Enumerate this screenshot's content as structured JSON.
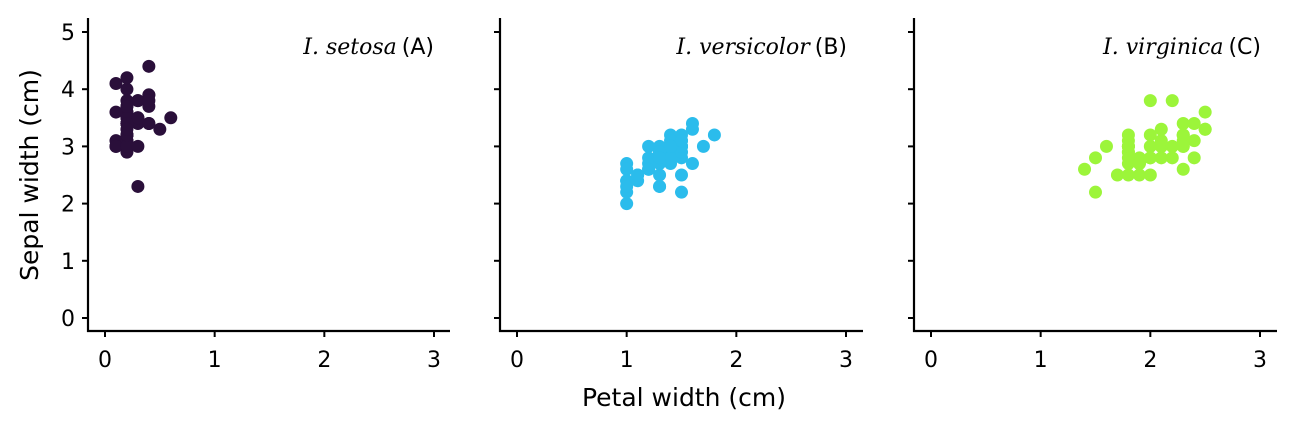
{
  "chart_data": {
    "type": "scatter",
    "xlabel": "Petal width (cm)",
    "ylabel": "Sepal width (cm)",
    "xlim": [
      0,
      3
    ],
    "ylim": [
      0,
      5
    ],
    "xticks": [
      0,
      1,
      2,
      3
    ],
    "yticks": [
      0,
      1,
      2,
      3,
      4,
      5
    ],
    "grid": false,
    "facets": [
      {
        "species": "I. setosa",
        "tag": "(A)",
        "color": "#2a0f3a",
        "points": [
          [
            0.2,
            3.5
          ],
          [
            0.2,
            3.0
          ],
          [
            0.2,
            3.2
          ],
          [
            0.2,
            3.1
          ],
          [
            0.2,
            3.6
          ],
          [
            0.4,
            3.9
          ],
          [
            0.3,
            3.4
          ],
          [
            0.2,
            3.4
          ],
          [
            0.2,
            2.9
          ],
          [
            0.1,
            3.1
          ],
          [
            0.2,
            3.7
          ],
          [
            0.2,
            3.4
          ],
          [
            0.1,
            3.0
          ],
          [
            0.1,
            3.0
          ],
          [
            0.2,
            4.0
          ],
          [
            0.4,
            4.4
          ],
          [
            0.4,
            3.9
          ],
          [
            0.3,
            3.5
          ],
          [
            0.3,
            3.8
          ],
          [
            0.3,
            3.8
          ],
          [
            0.2,
            3.4
          ],
          [
            0.4,
            3.7
          ],
          [
            0.2,
            3.6
          ],
          [
            0.5,
            3.3
          ],
          [
            0.2,
            3.4
          ],
          [
            0.2,
            3.0
          ],
          [
            0.4,
            3.4
          ],
          [
            0.2,
            3.5
          ],
          [
            0.2,
            3.4
          ],
          [
            0.2,
            3.2
          ],
          [
            0.2,
            3.1
          ],
          [
            0.4,
            3.4
          ],
          [
            0.1,
            4.1
          ],
          [
            0.2,
            4.2
          ],
          [
            0.2,
            3.1
          ],
          [
            0.2,
            3.2
          ],
          [
            0.2,
            3.5
          ],
          [
            0.1,
            3.6
          ],
          [
            0.2,
            3.0
          ],
          [
            0.2,
            3.4
          ],
          [
            0.3,
            3.5
          ],
          [
            0.3,
            2.3
          ],
          [
            0.2,
            3.2
          ],
          [
            0.6,
            3.5
          ],
          [
            0.4,
            3.8
          ],
          [
            0.3,
            3.0
          ],
          [
            0.2,
            3.8
          ],
          [
            0.2,
            3.2
          ],
          [
            0.2,
            3.7
          ],
          [
            0.2,
            3.3
          ]
        ]
      },
      {
        "species": "I. versicolor",
        "tag": "(B)",
        "color": "#2bbcec",
        "points": [
          [
            1.4,
            3.2
          ],
          [
            1.5,
            3.2
          ],
          [
            1.5,
            3.1
          ],
          [
            1.3,
            2.3
          ],
          [
            1.5,
            2.8
          ],
          [
            1.3,
            2.8
          ],
          [
            1.6,
            3.3
          ],
          [
            1.0,
            2.4
          ],
          [
            1.3,
            2.9
          ],
          [
            1.4,
            2.7
          ],
          [
            1.0,
            2.0
          ],
          [
            1.5,
            3.0
          ],
          [
            1.0,
            2.2
          ],
          [
            1.4,
            2.9
          ],
          [
            1.3,
            2.9
          ],
          [
            1.4,
            3.1
          ],
          [
            1.5,
            3.0
          ],
          [
            1.0,
            2.7
          ],
          [
            1.5,
            2.2
          ],
          [
            1.1,
            2.5
          ],
          [
            1.8,
            3.2
          ],
          [
            1.3,
            2.8
          ],
          [
            1.5,
            2.5
          ],
          [
            1.2,
            2.8
          ],
          [
            1.3,
            2.9
          ],
          [
            1.4,
            3.0
          ],
          [
            1.4,
            2.8
          ],
          [
            1.7,
            3.0
          ],
          [
            1.5,
            2.9
          ],
          [
            1.0,
            2.6
          ],
          [
            1.1,
            2.4
          ],
          [
            1.0,
            2.4
          ],
          [
            1.2,
            2.7
          ],
          [
            1.6,
            2.7
          ],
          [
            1.5,
            3.0
          ],
          [
            1.6,
            3.4
          ],
          [
            1.5,
            3.1
          ],
          [
            1.3,
            2.3
          ],
          [
            1.3,
            3.0
          ],
          [
            1.3,
            2.5
          ],
          [
            1.2,
            2.6
          ],
          [
            1.4,
            3.0
          ],
          [
            1.2,
            2.6
          ],
          [
            1.0,
            2.3
          ],
          [
            1.3,
            2.7
          ],
          [
            1.2,
            3.0
          ],
          [
            1.3,
            2.9
          ],
          [
            1.3,
            2.9
          ],
          [
            1.1,
            2.5
          ],
          [
            1.3,
            2.8
          ]
        ]
      },
      {
        "species": "I. virginica",
        "tag": "(C)",
        "color": "#9cf53a",
        "points": [
          [
            2.5,
            3.3
          ],
          [
            1.9,
            2.7
          ],
          [
            2.1,
            3.0
          ],
          [
            1.8,
            2.9
          ],
          [
            2.2,
            3.0
          ],
          [
            2.1,
            3.0
          ],
          [
            1.7,
            2.5
          ],
          [
            1.8,
            2.9
          ],
          [
            1.8,
            2.5
          ],
          [
            2.5,
            3.6
          ],
          [
            2.0,
            3.2
          ],
          [
            1.9,
            2.7
          ],
          [
            2.1,
            3.0
          ],
          [
            2.0,
            2.5
          ],
          [
            2.4,
            2.8
          ],
          [
            2.3,
            3.2
          ],
          [
            1.8,
            3.0
          ],
          [
            2.2,
            3.8
          ],
          [
            2.3,
            2.6
          ],
          [
            1.5,
            2.2
          ],
          [
            2.3,
            3.2
          ],
          [
            2.0,
            2.8
          ],
          [
            2.0,
            2.8
          ],
          [
            1.8,
            2.7
          ],
          [
            2.1,
            3.3
          ],
          [
            1.8,
            3.2
          ],
          [
            1.8,
            2.8
          ],
          [
            1.8,
            3.0
          ],
          [
            2.1,
            2.8
          ],
          [
            1.6,
            3.0
          ],
          [
            1.9,
            2.8
          ],
          [
            2.0,
            3.8
          ],
          [
            2.2,
            2.8
          ],
          [
            1.5,
            2.8
          ],
          [
            1.4,
            2.6
          ],
          [
            2.3,
            3.0
          ],
          [
            2.4,
            3.4
          ],
          [
            1.8,
            3.1
          ],
          [
            1.8,
            3.0
          ],
          [
            2.1,
            3.1
          ],
          [
            2.4,
            3.1
          ],
          [
            2.3,
            3.1
          ],
          [
            1.9,
            2.7
          ],
          [
            2.3,
            3.2
          ],
          [
            2.5,
            3.3
          ],
          [
            2.3,
            3.0
          ],
          [
            1.9,
            2.5
          ],
          [
            2.0,
            3.0
          ],
          [
            2.3,
            3.4
          ],
          [
            1.8,
            3.0
          ]
        ]
      }
    ]
  }
}
